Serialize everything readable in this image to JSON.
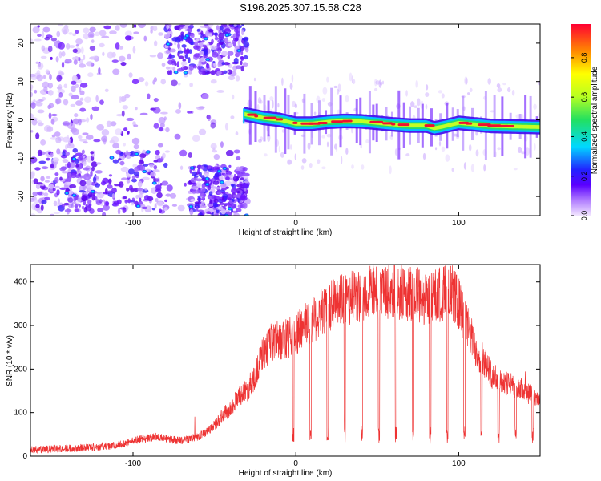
{
  "title": "S196.2025.307.15.58.C28",
  "chart_data": [
    {
      "type": "heatmap",
      "xlabel": "Height of straight line (km)",
      "ylabel": "Frequency (Hz)",
      "xlim": [
        -163,
        150
      ],
      "ylim": [
        -25,
        25
      ],
      "xticks": [
        -100,
        0,
        100
      ],
      "yticks": [
        -20,
        -10,
        0,
        10,
        20
      ],
      "colorbar": {
        "label": "Normalized spectral amplitude",
        "range": [
          0,
          0.97
        ],
        "ticks": [
          0.0,
          0.2,
          0.4,
          0.6,
          0.8
        ]
      },
      "ridge_frequency_profile": {
        "x": [
          -32,
          -20,
          -10,
          0,
          10,
          20,
          30,
          40,
          50,
          60,
          70,
          80,
          85,
          90,
          100,
          110,
          120,
          130,
          140,
          150
        ],
        "y": [
          1.5,
          0.5,
          0,
          -1,
          -1,
          -0.5,
          -0.3,
          -0.4,
          -0.8,
          -1.2,
          -1.5,
          -1.5,
          -2.2,
          -1.8,
          -0.8,
          -1.2,
          -1.6,
          -1.7,
          -1.8,
          -1.9
        ]
      },
      "bands": [
        {
          "name": "lower-left cluster",
          "x_range": [
            -160,
            -78
          ],
          "y_range": [
            -24,
            -8
          ]
        },
        {
          "name": "upper-left cluster",
          "x_range": [
            -80,
            -30
          ],
          "y_range": [
            12,
            25
          ]
        },
        {
          "name": "lower-right cluster",
          "x_range": [
            -65,
            -30
          ],
          "y_range": [
            -25,
            -12
          ]
        }
      ]
    },
    {
      "type": "line",
      "xlabel": "Height of straight line (km)",
      "ylabel": "SNR (10 * v/v)",
      "xlim": [
        -163,
        150
      ],
      "ylim": [
        0,
        440
      ],
      "xticks": [
        -100,
        0,
        100
      ],
      "yticks": [
        0,
        100,
        200,
        300,
        400
      ],
      "color": "#ee3333",
      "series": [
        {
          "x": [
            -163,
            -150,
            -140,
            -130,
            -120,
            -110,
            -100,
            -95,
            -90,
            -85,
            -80,
            -75,
            -70,
            -65,
            -60,
            -55,
            -50,
            -45,
            -40,
            -35,
            -30,
            -25,
            -20,
            -15,
            -10,
            -5,
            0,
            5,
            10,
            15,
            20,
            25,
            30,
            35,
            40,
            45,
            50,
            55,
            60,
            65,
            70,
            75,
            80,
            85,
            90,
            95,
            100,
            105,
            110,
            115,
            120,
            125,
            130,
            135,
            140,
            145,
            150
          ],
          "y": [
            15,
            16,
            18,
            20,
            22,
            25,
            35,
            40,
            42,
            45,
            40,
            38,
            36,
            40,
            45,
            55,
            70,
            95,
            110,
            140,
            150,
            185,
            240,
            260,
            265,
            270,
            280,
            300,
            310,
            330,
            340,
            350,
            360,
            365,
            370,
            375,
            375,
            375,
            380,
            375,
            370,
            370,
            360,
            365,
            375,
            380,
            350,
            300,
            250,
            220,
            190,
            170,
            165,
            160,
            150,
            140,
            130
          ]
        }
      ]
    }
  ]
}
